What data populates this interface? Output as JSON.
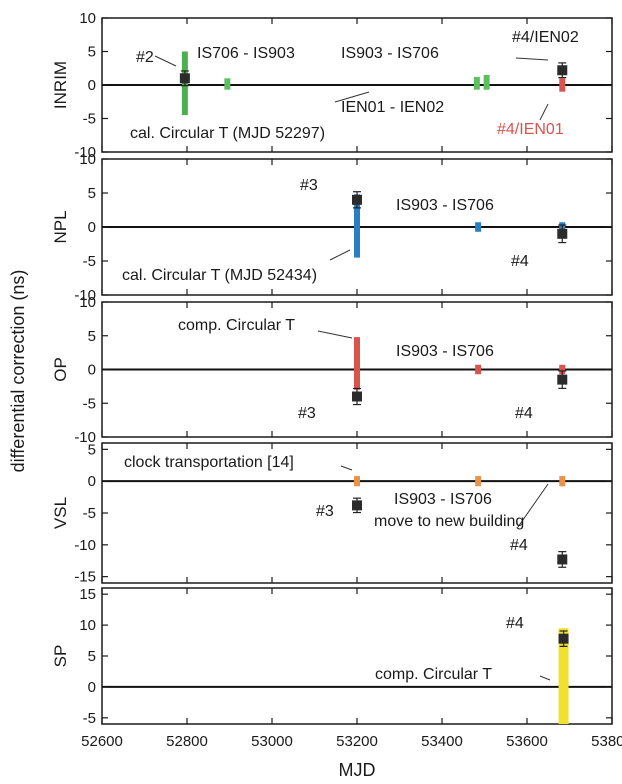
{
  "chart_data": {
    "type": "scatter",
    "title": "",
    "xlabel": "MJD",
    "ylabel": "differential correction (ns)",
    "xlim": [
      52600,
      53800
    ],
    "xticks": [
      52600,
      52800,
      53000,
      53200,
      53400,
      53600,
      53800
    ],
    "panels": [
      {
        "name": "INRIM",
        "ylim": [
          -10,
          10
        ],
        "yticks": [
          -10,
          -5,
          0,
          5,
          10
        ],
        "bars": [
          {
            "x": 52795,
            "y0": -4.5,
            "y1": 5,
            "color": "#4caf50",
            "width": 6
          },
          {
            "x": 52895,
            "y0": -0.7,
            "y1": 1.0,
            "color": "#5cbf60",
            "width": 6
          },
          {
            "x": 53482,
            "y0": -0.7,
            "y1": 1.2,
            "color": "#5cbf60",
            "width": 6
          },
          {
            "x": 53505,
            "y0": -0.7,
            "y1": 1.5,
            "color": "#5cbf60",
            "width": 6
          },
          {
            "x": 53683,
            "y0": -1.0,
            "y1": 1.0,
            "color": "#d9534f",
            "width": 6
          }
        ],
        "points": [
          {
            "x": 52795,
            "y": 1.0,
            "err": 0.5
          },
          {
            "x": 53683,
            "y": 2.2,
            "err": 0.5
          }
        ],
        "annotations": [
          {
            "text": "#2",
            "color": "#1a1a1a"
          },
          {
            "text": "IS706 - IS903",
            "color": "#1a1a1a"
          },
          {
            "text": "IS903 - IS706",
            "color": "#1a1a1a"
          },
          {
            "text": "#4/IEN02",
            "color": "#1a1a1a"
          },
          {
            "text": "IEN01 - IEN02",
            "color": "#1a1a1a"
          },
          {
            "text": "#4/IEN01",
            "color": "#d9534f"
          },
          {
            "text": "cal. Circular T (MJD 52297)",
            "color": "#1a1a1a"
          }
        ]
      },
      {
        "name": "NPL",
        "ylim": [
          -10,
          10
        ],
        "yticks": [
          -10,
          -5,
          0,
          5,
          10
        ],
        "bars": [
          {
            "x": 53200,
            "y0": -4.5,
            "y1": 4.8,
            "color": "#2a7fc4",
            "width": 6
          },
          {
            "x": 53485,
            "y0": -0.7,
            "y1": 0.7,
            "color": "#2a7fc4",
            "width": 6
          },
          {
            "x": 53683,
            "y0": -0.7,
            "y1": 0.7,
            "color": "#2a7fc4",
            "width": 6
          }
        ],
        "points": [
          {
            "x": 53200,
            "y": 4.0,
            "err": 0.6
          },
          {
            "x": 53683,
            "y": -1.0,
            "err": 0.7
          }
        ],
        "annotations": [
          {
            "text": "#3",
            "color": "#1a1a1a"
          },
          {
            "text": "IS903 - IS706",
            "color": "#1a1a1a"
          },
          {
            "text": "#4",
            "color": "#1a1a1a"
          },
          {
            "text": "cal. Circular T (MJD 52434)",
            "color": "#1a1a1a"
          }
        ]
      },
      {
        "name": "OP",
        "ylim": [
          -10,
          10
        ],
        "yticks": [
          -10,
          -5,
          0,
          5,
          10
        ],
        "bars": [
          {
            "x": 53200,
            "y0": -3.0,
            "y1": 4.8,
            "color": "#d9534f",
            "width": 6
          },
          {
            "x": 53485,
            "y0": -0.7,
            "y1": 0.7,
            "color": "#d9534f",
            "width": 6
          },
          {
            "x": 53683,
            "y0": -0.7,
            "y1": 0.7,
            "color": "#d9534f",
            "width": 6
          }
        ],
        "points": [
          {
            "x": 53200,
            "y": -4.0,
            "err": 0.6
          },
          {
            "x": 53683,
            "y": -1.5,
            "err": 0.7
          }
        ],
        "annotations": [
          {
            "text": "comp. Circular T",
            "color": "#1a1a1a"
          },
          {
            "text": "IS903 - IS706",
            "color": "#1a1a1a"
          },
          {
            "text": "#3",
            "color": "#1a1a1a"
          },
          {
            "text": "#4",
            "color": "#1a1a1a"
          }
        ]
      },
      {
        "name": "VSL",
        "ylim": [
          -16,
          6
        ],
        "yticks": [
          -15,
          -10,
          -5,
          0,
          5
        ],
        "bars": [
          {
            "x": 53200,
            "y0": -0.8,
            "y1": 0.8,
            "color": "#e8924a",
            "width": 6
          },
          {
            "x": 53485,
            "y0": -0.8,
            "y1": 0.8,
            "color": "#e8924a",
            "width": 6
          },
          {
            "x": 53683,
            "y0": -0.8,
            "y1": 0.8,
            "color": "#e8924a",
            "width": 6
          }
        ],
        "points": [
          {
            "x": 53200,
            "y": -3.8,
            "err": 0.5
          },
          {
            "x": 53683,
            "y": -12.3,
            "err": 0.6
          }
        ],
        "annotations": [
          {
            "text": "clock transportation [14]",
            "color": "#1a1a1a"
          },
          {
            "text": "IS903 - IS706",
            "color": "#1a1a1a"
          },
          {
            "text": "move to new building",
            "color": "#1a1a1a"
          },
          {
            "text": "#3",
            "color": "#1a1a1a"
          },
          {
            "text": "#4",
            "color": "#1a1a1a"
          }
        ]
      },
      {
        "name": "SP",
        "ylim": [
          -6,
          16
        ],
        "yticks": [
          -5,
          0,
          5,
          10,
          15
        ],
        "bars": [
          {
            "x": 53686,
            "y0": -6,
            "y1": 9.5,
            "color": "#f0e130",
            "width": 10
          }
        ],
        "points": [
          {
            "x": 53686,
            "y": 7.8,
            "err": 0.6
          }
        ],
        "annotations": [
          {
            "text": "#4",
            "color": "#1a1a1a"
          },
          {
            "text": "comp. Circular T",
            "color": "#1a1a1a"
          }
        ]
      }
    ]
  }
}
